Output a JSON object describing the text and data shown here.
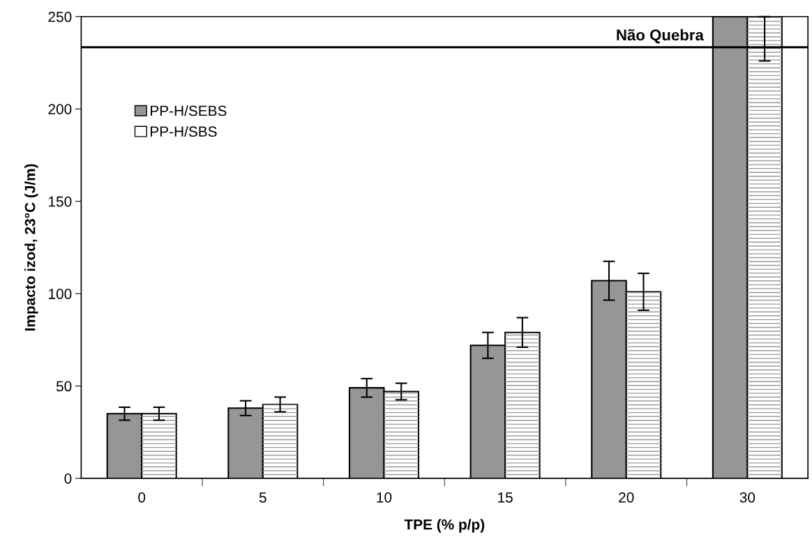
{
  "chart_data": {
    "type": "bar",
    "xlabel": "TPE (% p/p)",
    "ylabel": "Impacto izod, 23°C (J/m)",
    "categories": [
      "0",
      "5",
      "10",
      "15",
      "20",
      "30"
    ],
    "series": [
      {
        "name": "PP-H/SEBS",
        "color": "#969696",
        "values": [
          35,
          38,
          49,
          72,
          107,
          250
        ],
        "errors": [
          3.5,
          4,
          5,
          7,
          10.5,
          null
        ]
      },
      {
        "name": "PP-H/SBS",
        "color": "#ffffff",
        "values": [
          35,
          40,
          47,
          79,
          101,
          250
        ],
        "errors": [
          3.5,
          4,
          4.5,
          8,
          10,
          [
            226,
            250
          ]
        ]
      }
    ],
    "ylim": [
      0,
      250
    ],
    "yticks": [
      0,
      50,
      100,
      150,
      200,
      250
    ],
    "ref_lines": [
      {
        "axis": "y",
        "value": 233.4,
        "label": "Não Quebra",
        "color": "#000000"
      }
    ],
    "grid": false,
    "legend": "top left"
  }
}
